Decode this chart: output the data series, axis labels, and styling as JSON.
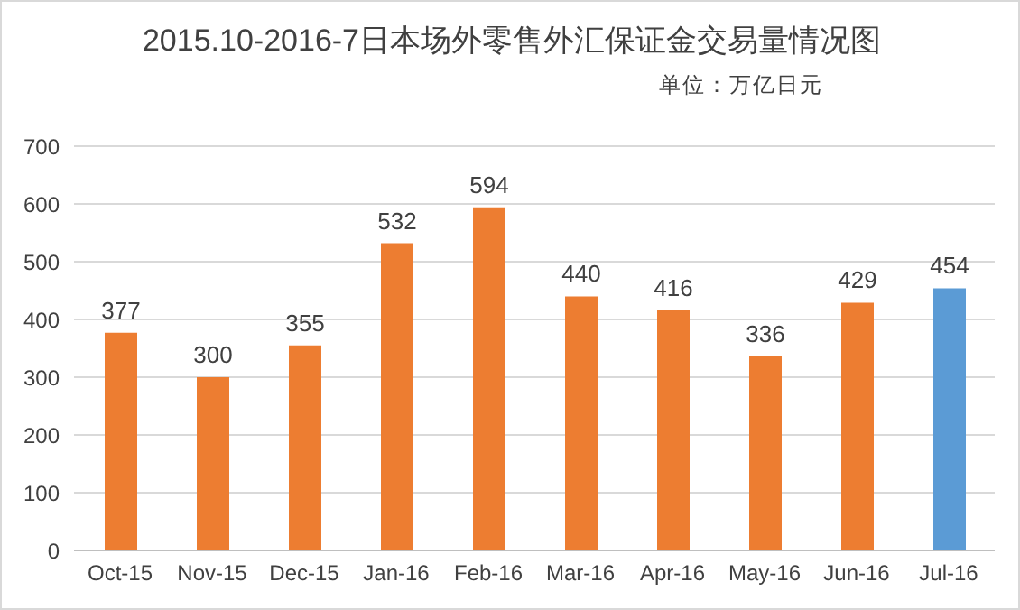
{
  "chart_data": {
    "type": "bar",
    "title": "2015.10-2016-7日本场外零售外汇保证金交易量情况图",
    "subtitle": "单位：万亿日元",
    "categories": [
      "Oct-15",
      "Nov-15",
      "Dec-15",
      "Jan-16",
      "Feb-16",
      "Mar-16",
      "Apr-16",
      "May-16",
      "Jun-16",
      "Jul-16"
    ],
    "values": [
      377,
      300,
      355,
      532,
      594,
      440,
      416,
      336,
      429,
      454
    ],
    "colors": [
      "#ed7d31",
      "#ed7d31",
      "#ed7d31",
      "#ed7d31",
      "#ed7d31",
      "#ed7d31",
      "#ed7d31",
      "#ed7d31",
      "#ed7d31",
      "#5b9bd5"
    ],
    "ylim": [
      0,
      700
    ],
    "yticks": [
      0,
      100,
      200,
      300,
      400,
      500,
      600,
      700
    ],
    "grid": "y",
    "data_labels": true
  }
}
